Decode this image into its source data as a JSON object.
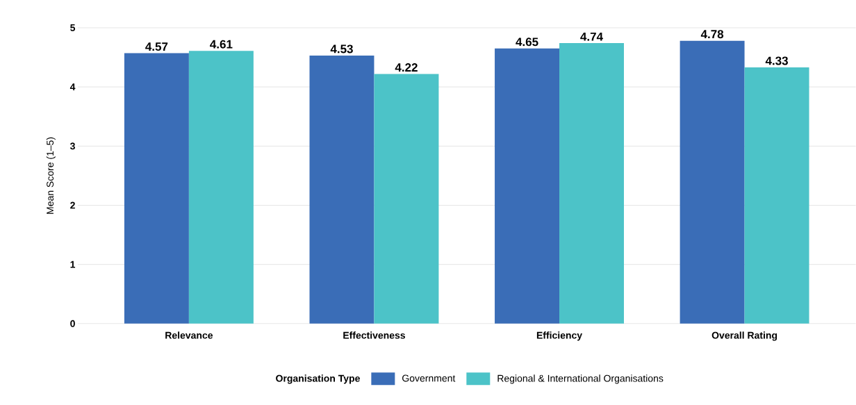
{
  "chart_data": {
    "type": "bar",
    "ylabel": "Mean Score (1–5)",
    "legend_title": "Organisation Type",
    "categories": [
      "Relevance",
      "Effectiveness",
      "Efficiency",
      "Overall Rating"
    ],
    "series": [
      {
        "name": "Government",
        "color": "#3a6db7",
        "values": [
          4.57,
          4.53,
          4.65,
          4.78
        ]
      },
      {
        "name": "Regional & International Organisations",
        "color": "#4cc3c8",
        "values": [
          4.61,
          4.22,
          4.74,
          4.33
        ]
      }
    ],
    "ylim": [
      0,
      5
    ],
    "yticks": [
      0,
      1,
      2,
      3,
      4,
      5
    ],
    "grid": "y",
    "legend": "bottom",
    "data_labels": true
  }
}
